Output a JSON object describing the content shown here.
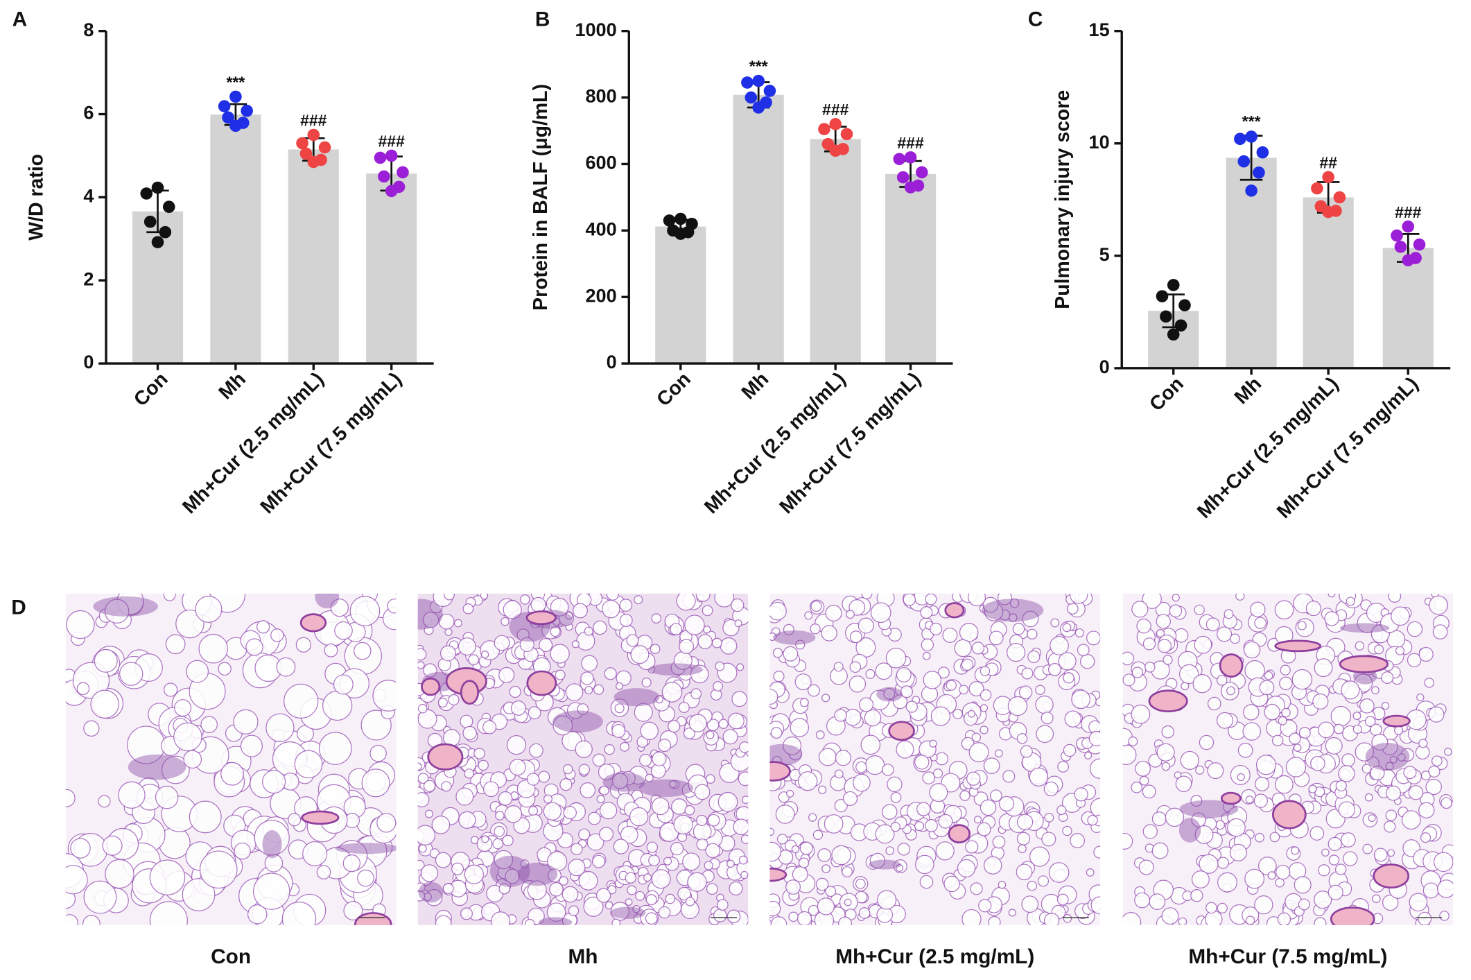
{
  "chart_data": [
    {
      "type": "bar",
      "panel": "A",
      "ylabel": "W/D ratio",
      "categories": [
        "Con",
        "Mh",
        "Mh+Cur (2.5 mg/mL)",
        "Mh+Cur (7.5 mg/mL)"
      ],
      "values": [
        3.66,
        5.99,
        5.15,
        4.57
      ],
      "errors": [
        0.5,
        0.25,
        0.27,
        0.41
      ],
      "points": [
        [
          4.23,
          4.09,
          3.77,
          3.41,
          3.16,
          2.92
        ],
        [
          6.42,
          6.19,
          6.08,
          5.92,
          5.79,
          5.72
        ],
        [
          5.5,
          5.3,
          5.2,
          5.05,
          4.9,
          4.85
        ],
        [
          5.0,
          4.95,
          4.6,
          4.5,
          4.25,
          4.15
        ]
      ],
      "annotations": [
        null,
        "***",
        "###",
        "###"
      ],
      "colors": [
        "#111111",
        "#1f2fe6",
        "#ef4444",
        "#9b1fd6"
      ],
      "bar_color": "#d3d3d3",
      "ylim": [
        0,
        8
      ],
      "yticks": [
        0,
        2,
        4,
        6,
        8
      ]
    },
    {
      "type": "bar",
      "panel": "B",
      "ylabel": "Protein in BALF (μg/mL)",
      "categories": [
        "Con",
        "Mh",
        "Mh+Cur (2.5 mg/mL)",
        "Mh+Cur (7.5 mg/mL)"
      ],
      "values": [
        412,
        808,
        675,
        570
      ],
      "errors": [
        20,
        38,
        37,
        39
      ],
      "points": [
        [
          435,
          430,
          420,
          400,
          395,
          390
        ],
        [
          850,
          845,
          820,
          800,
          785,
          770
        ],
        [
          720,
          705,
          690,
          660,
          645,
          640
        ],
        [
          620,
          615,
          575,
          560,
          535,
          530
        ]
      ],
      "annotations": [
        null,
        "***",
        "###",
        "###"
      ],
      "colors": [
        "#111111",
        "#1f2fe6",
        "#ef4444",
        "#9b1fd6"
      ],
      "bar_color": "#d3d3d3",
      "ylim": [
        0,
        1000
      ],
      "yticks": [
        0,
        200,
        400,
        600,
        800,
        1000
      ]
    },
    {
      "type": "bar",
      "panel": "C",
      "ylabel": "Pulmonary injury score",
      "categories": [
        "Con",
        "Mh",
        "Mh+Cur (2.5 mg/mL)",
        "Mh+Cur (7.5 mg/mL)"
      ],
      "values": [
        2.55,
        9.36,
        7.6,
        5.35
      ],
      "errors": [
        0.73,
        0.98,
        0.68,
        0.62
      ],
      "points": [
        [
          3.7,
          3.2,
          2.8,
          2.3,
          1.9,
          1.5
        ],
        [
          10.3,
          10.2,
          9.6,
          9.2,
          8.7,
          7.9
        ],
        [
          8.5,
          8.0,
          7.6,
          7.2,
          7.0,
          6.95
        ],
        [
          6.3,
          5.9,
          5.5,
          5.4,
          4.9,
          4.8
        ]
      ],
      "annotations": [
        null,
        "***",
        "##",
        "###"
      ],
      "colors": [
        "#111111",
        "#1f2fe6",
        "#ef4444",
        "#9b1fd6"
      ],
      "bar_color": "#d3d3d3",
      "ylim": [
        0,
        15
      ],
      "yticks": [
        0,
        5,
        10,
        15
      ]
    }
  ],
  "histology": {
    "panel": "D",
    "captions": [
      "Con",
      "Mh",
      "Mh+Cur (2.5 mg/mL)",
      "Mh+Cur (7.5 mg/mL)"
    ]
  }
}
